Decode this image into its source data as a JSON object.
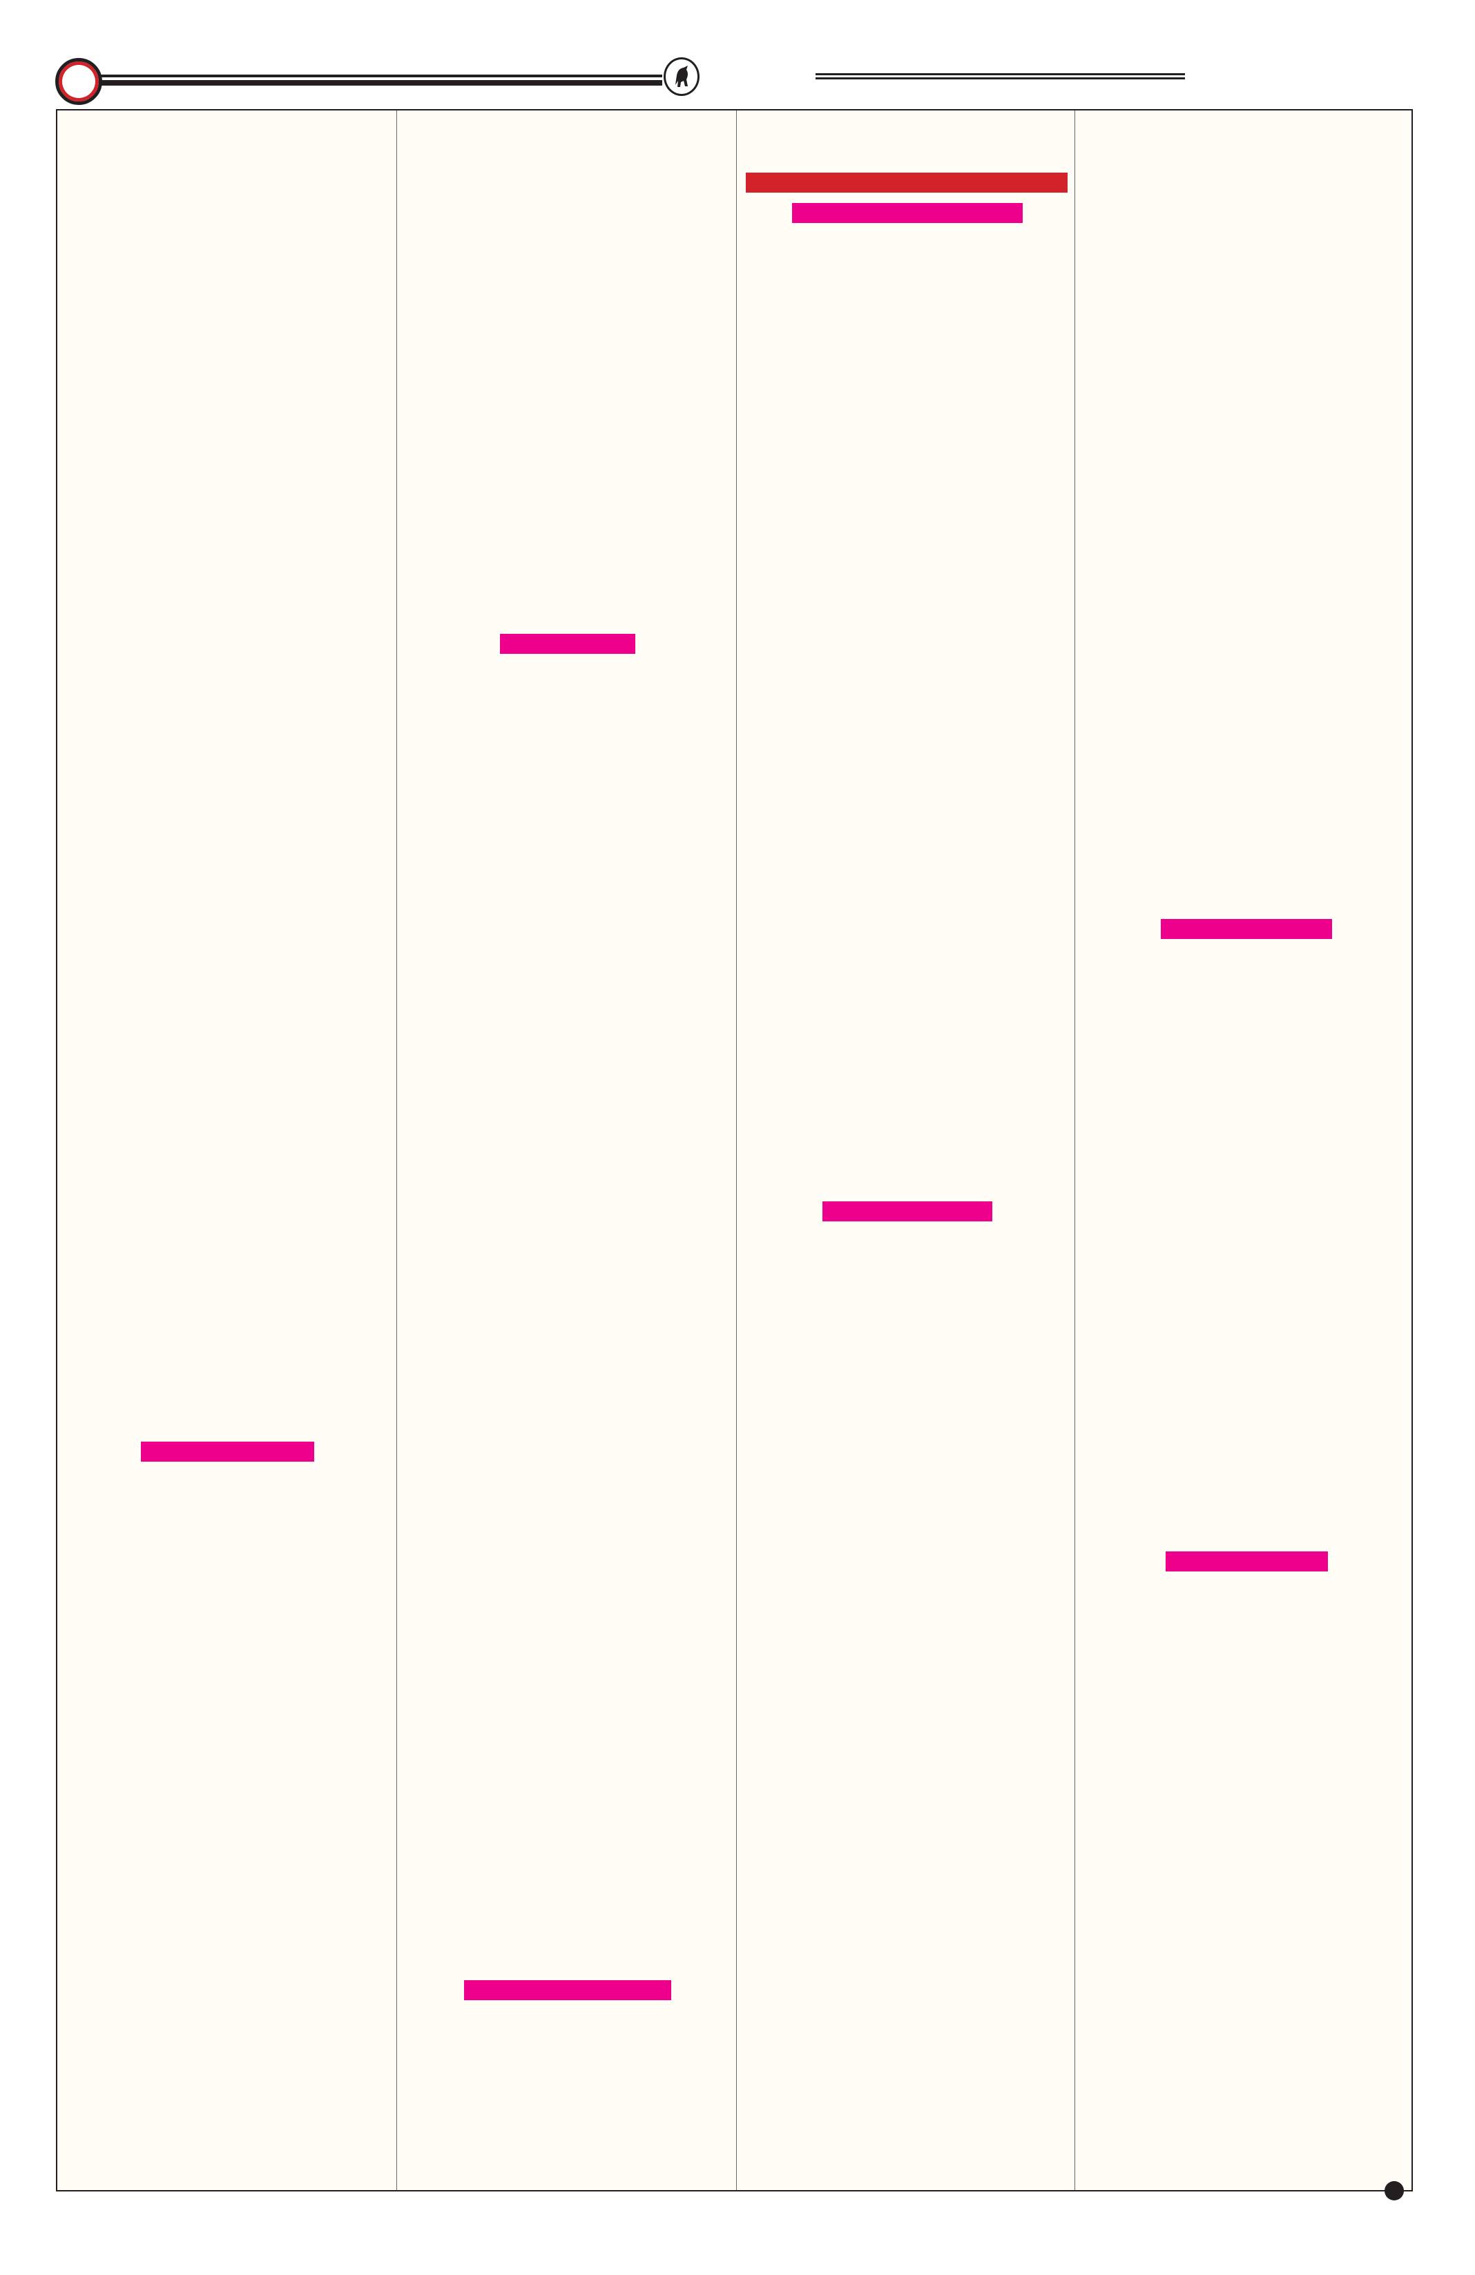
{
  "colors": {
    "page_background": "#fffdf5",
    "frame": "#231f20",
    "heading_bar": "#d2232a",
    "subheading_bar": "#ec008c"
  },
  "header": {
    "left_ornament": "ring-icon",
    "emblem": "bull-emblem-icon"
  },
  "columns": 4,
  "footer": {
    "marker": "dot-icon"
  }
}
